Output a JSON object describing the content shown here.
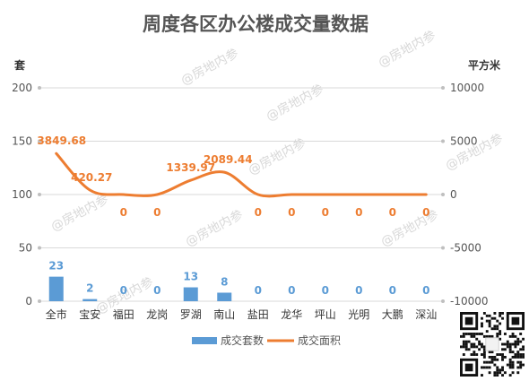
{
  "chart_data": {
    "type": "bar+line",
    "title": "周度各区办公楼成交量数据",
    "y_left_label": "套",
    "y_right_label": "平方米",
    "y_left_ticks": [
      "200",
      "150",
      "100",
      "50",
      "0"
    ],
    "y_right_ticks": [
      "10000",
      "5000",
      "0",
      "-5000",
      "-10000"
    ],
    "y_left_range": [
      0,
      200
    ],
    "y_right_range": [
      -10000,
      10000
    ],
    "categories": [
      "全市",
      "宝安",
      "福田",
      "龙岗",
      "罗湖",
      "南山",
      "盐田",
      "龙华",
      "坪山",
      "光明",
      "大鹏",
      "深汕"
    ],
    "series": [
      {
        "name": "成交套数",
        "type": "bar",
        "axis": "left",
        "values": [
          23,
          2,
          0,
          0,
          13,
          8,
          0,
          0,
          0,
          0,
          0,
          0
        ],
        "labels": [
          "23",
          "2",
          "0",
          "0",
          "13",
          "8",
          "0",
          "0",
          "0",
          "0",
          "0",
          "0"
        ]
      },
      {
        "name": "成交面积",
        "type": "line",
        "axis": "right",
        "values": [
          3849.68,
          420.27,
          0,
          0,
          1339.97,
          2089.44,
          0,
          0,
          0,
          0,
          0,
          0
        ],
        "labels": [
          "3849.68",
          "420.27",
          "0",
          "0",
          "1339.97",
          "2089.44",
          "0",
          "0",
          "0",
          "0",
          "0",
          "0"
        ]
      }
    ],
    "colors": {
      "bar": "#5b9bd5",
      "line": "#ed7d31",
      "grid": "#d9d9d9"
    },
    "legend_position": "bottom",
    "grid": true
  },
  "watermark": "@房地内参"
}
